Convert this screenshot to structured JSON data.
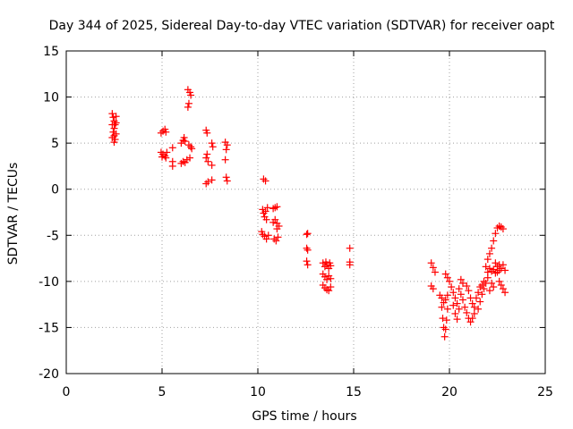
{
  "chart_data": {
    "type": "scatter",
    "title": "Day 344 of 2025, Sidereal Day-to-day VTEC variation (SDTVAR) for receiver oapt",
    "xlabel": "GPS time / hours",
    "ylabel": "SDTVAR / TECUs",
    "xlim": [
      0,
      25
    ],
    "ylim": [
      -20,
      15
    ],
    "xticks": [
      0,
      5,
      10,
      15,
      20,
      25
    ],
    "yticks": [
      -20,
      -15,
      -10,
      -5,
      0,
      5,
      10,
      15
    ],
    "xtick_labels": [
      "0",
      "5",
      "10",
      "15",
      "20",
      "25"
    ],
    "ytick_labels": [
      "-20",
      "-15",
      "-10",
      "-5",
      "0",
      "5",
      "10",
      "15"
    ],
    "grid": true,
    "marker": "+",
    "series_color": "#ff0000",
    "series": [
      {
        "name": "SDTVAR",
        "points": [
          [
            2.4,
            8.2
          ],
          [
            2.45,
            7.8
          ],
          [
            2.5,
            7.4
          ],
          [
            2.55,
            7.0
          ],
          [
            2.5,
            6.6
          ],
          [
            2.45,
            6.2
          ],
          [
            2.5,
            5.8
          ],
          [
            2.55,
            5.4
          ],
          [
            2.5,
            5.1
          ],
          [
            2.6,
            7.9
          ],
          [
            2.6,
            7.2
          ],
          [
            2.6,
            6.0
          ],
          [
            2.4,
            7.0
          ],
          [
            2.4,
            5.6
          ],
          [
            4.95,
            6.1
          ],
          [
            5.05,
            6.3
          ],
          [
            5.15,
            6.5
          ],
          [
            5.2,
            6.2
          ],
          [
            4.95,
            4.0
          ],
          [
            5.05,
            3.8
          ],
          [
            5.15,
            3.6
          ],
          [
            5.25,
            4.0
          ],
          [
            5.0,
            3.5
          ],
          [
            5.2,
            3.4
          ],
          [
            5.55,
            4.5
          ],
          [
            5.55,
            3.0
          ],
          [
            5.55,
            2.5
          ],
          [
            6.0,
            5.0
          ],
          [
            6.1,
            5.3
          ],
          [
            6.15,
            5.6
          ],
          [
            6.2,
            5.2
          ],
          [
            6.0,
            2.8
          ],
          [
            6.1,
            3.0
          ],
          [
            6.2,
            2.9
          ],
          [
            6.3,
            3.2
          ],
          [
            6.35,
            10.8
          ],
          [
            6.45,
            10.5
          ],
          [
            6.5,
            10.2
          ],
          [
            6.4,
            9.3
          ],
          [
            6.35,
            8.9
          ],
          [
            6.4,
            4.8
          ],
          [
            6.5,
            4.6
          ],
          [
            6.55,
            4.4
          ],
          [
            6.45,
            3.4
          ],
          [
            7.3,
            6.4
          ],
          [
            7.35,
            6.1
          ],
          [
            7.35,
            3.8
          ],
          [
            7.3,
            3.4
          ],
          [
            7.4,
            3.0
          ],
          [
            7.3,
            0.6
          ],
          [
            7.4,
            0.8
          ],
          [
            7.6,
            5.0
          ],
          [
            7.65,
            4.6
          ],
          [
            7.6,
            2.6
          ],
          [
            7.6,
            1.0
          ],
          [
            8.3,
            5.1
          ],
          [
            8.4,
            4.8
          ],
          [
            8.35,
            4.3
          ],
          [
            8.3,
            3.2
          ],
          [
            8.35,
            1.3
          ],
          [
            8.4,
            0.9
          ],
          [
            10.3,
            1.1
          ],
          [
            10.4,
            0.9
          ],
          [
            10.25,
            -2.2
          ],
          [
            10.3,
            -2.6
          ],
          [
            10.35,
            -3.0
          ],
          [
            10.4,
            -2.4
          ],
          [
            10.5,
            -2.0
          ],
          [
            10.45,
            -3.3
          ],
          [
            10.2,
            -4.6
          ],
          [
            10.25,
            -4.9
          ],
          [
            10.35,
            -5.1
          ],
          [
            10.45,
            -5.4
          ],
          [
            10.55,
            -5.0
          ],
          [
            10.8,
            -2.1
          ],
          [
            10.9,
            -2.0
          ],
          [
            11.0,
            -1.9
          ],
          [
            10.8,
            -3.6
          ],
          [
            10.9,
            -3.3
          ],
          [
            11.0,
            -3.7
          ],
          [
            11.1,
            -4.0
          ],
          [
            11.0,
            -4.3
          ],
          [
            10.85,
            -5.4
          ],
          [
            10.95,
            -5.6
          ],
          [
            11.05,
            -5.2
          ],
          [
            12.55,
            -4.9
          ],
          [
            12.6,
            -4.8
          ],
          [
            12.55,
            -6.4
          ],
          [
            12.6,
            -6.6
          ],
          [
            12.55,
            -7.8
          ],
          [
            12.6,
            -8.2
          ],
          [
            13.4,
            -8.0
          ],
          [
            13.5,
            -8.4
          ],
          [
            13.6,
            -8.2
          ],
          [
            13.7,
            -8.6
          ],
          [
            13.8,
            -8.3
          ],
          [
            13.4,
            -9.2
          ],
          [
            13.5,
            -9.5
          ],
          [
            13.6,
            -9.8
          ],
          [
            13.7,
            -9.4
          ],
          [
            13.8,
            -9.7
          ],
          [
            13.4,
            -10.4
          ],
          [
            13.5,
            -10.7
          ],
          [
            13.6,
            -10.9
          ],
          [
            13.7,
            -11.0
          ],
          [
            13.8,
            -10.6
          ],
          [
            13.55,
            -7.9
          ],
          [
            13.75,
            -8.0
          ],
          [
            14.8,
            -6.4
          ],
          [
            14.8,
            -7.9
          ],
          [
            14.8,
            -8.2
          ],
          [
            19.05,
            -8.0
          ],
          [
            19.15,
            -8.5
          ],
          [
            19.25,
            -9.0
          ],
          [
            19.05,
            -10.5
          ],
          [
            19.15,
            -10.8
          ],
          [
            19.5,
            -11.5
          ],
          [
            19.6,
            -12.8
          ],
          [
            19.65,
            -14.0
          ],
          [
            19.7,
            -15.0
          ],
          [
            19.75,
            -16.0
          ],
          [
            19.8,
            -15.2
          ],
          [
            19.85,
            -14.2
          ],
          [
            19.9,
            -13.0
          ],
          [
            19.6,
            -11.8
          ],
          [
            19.7,
            -12.3
          ],
          [
            19.8,
            -12.0
          ],
          [
            19.9,
            -11.5
          ],
          [
            19.8,
            -9.2
          ],
          [
            19.9,
            -9.6
          ],
          [
            20.0,
            -10.0
          ],
          [
            20.1,
            -10.6
          ],
          [
            20.2,
            -11.2
          ],
          [
            20.3,
            -11.8
          ],
          [
            20.4,
            -12.4
          ],
          [
            20.5,
            -13.0
          ],
          [
            20.2,
            -12.6
          ],
          [
            20.3,
            -13.5
          ],
          [
            20.4,
            -14.1
          ],
          [
            20.5,
            -10.8
          ],
          [
            20.6,
            -11.4
          ],
          [
            20.7,
            -12.0
          ],
          [
            20.8,
            -12.8
          ],
          [
            20.9,
            -13.4
          ],
          [
            21.0,
            -14.0
          ],
          [
            21.1,
            -14.4
          ],
          [
            21.2,
            -14.0
          ],
          [
            21.3,
            -13.5
          ],
          [
            20.6,
            -9.8
          ],
          [
            20.7,
            -10.2
          ],
          [
            20.9,
            -10.5
          ],
          [
            21.0,
            -11.0
          ],
          [
            21.1,
            -11.8
          ],
          [
            21.2,
            -12.4
          ],
          [
            21.3,
            -12.8
          ],
          [
            21.4,
            -11.8
          ],
          [
            21.5,
            -11.2
          ],
          [
            21.6,
            -10.6
          ],
          [
            21.7,
            -10.4
          ],
          [
            21.8,
            -10.0
          ],
          [
            21.5,
            -13.0
          ],
          [
            21.6,
            -12.2
          ],
          [
            21.7,
            -11.4
          ],
          [
            21.8,
            -10.8
          ],
          [
            21.9,
            -10.2
          ],
          [
            22.0,
            -9.6
          ],
          [
            21.9,
            -8.4
          ],
          [
            22.0,
            -7.6
          ],
          [
            22.1,
            -7.0
          ],
          [
            22.2,
            -6.4
          ],
          [
            22.3,
            -5.6
          ],
          [
            22.4,
            -4.8
          ],
          [
            22.5,
            -4.2
          ],
          [
            22.6,
            -4.0
          ],
          [
            22.7,
            -4.1
          ],
          [
            22.8,
            -4.3
          ],
          [
            22.0,
            -9.0
          ],
          [
            22.1,
            -8.6
          ],
          [
            22.2,
            -8.9
          ],
          [
            22.3,
            -8.7
          ],
          [
            22.4,
            -9.1
          ],
          [
            22.5,
            -9.0
          ],
          [
            22.6,
            -8.8
          ],
          [
            22.2,
            -10.2
          ],
          [
            22.3,
            -10.6
          ],
          [
            22.1,
            -11.0
          ],
          [
            22.4,
            -8.0
          ],
          [
            22.5,
            -8.4
          ],
          [
            22.6,
            -8.2
          ],
          [
            22.7,
            -8.6
          ],
          [
            22.8,
            -8.2
          ],
          [
            22.9,
            -8.8
          ],
          [
            22.6,
            -10.0
          ],
          [
            22.7,
            -10.4
          ],
          [
            22.8,
            -10.8
          ],
          [
            22.9,
            -11.2
          ]
        ]
      }
    ]
  }
}
